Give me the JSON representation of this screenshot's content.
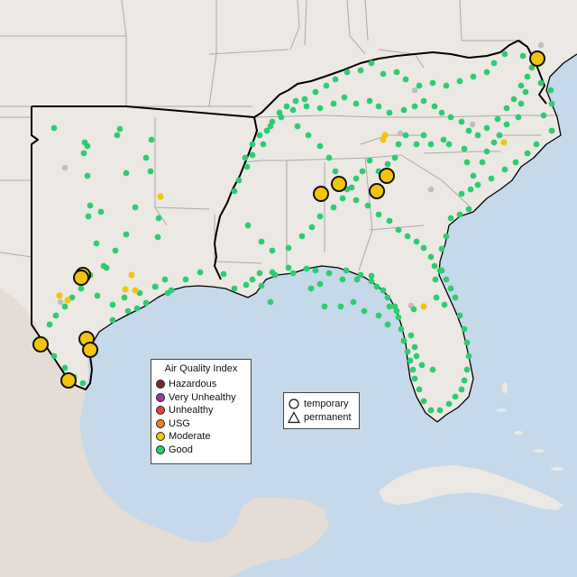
{
  "map": {
    "colors": {
      "water": "#c5d9ea",
      "land": "#ece9e4",
      "mexico": "#e4dcd5",
      "cuba": "#ece9e4",
      "region_border": "#000000",
      "state_line": "#a9a9a9"
    }
  },
  "aqi_legend": {
    "title": "Air Quality Index",
    "items": [
      {
        "label": "Hazardous",
        "color": "#7e2a2a"
      },
      {
        "label": "Very Unhealthy",
        "color": "#8f3f97"
      },
      {
        "label": "Unhealthy",
        "color": "#e8413a"
      },
      {
        "label": "USG",
        "color": "#f07d1f"
      },
      {
        "label": "Moderate",
        "color": "#f2c40f"
      },
      {
        "label": "Good",
        "color": "#2ecc71"
      }
    ]
  },
  "shape_legend": {
    "items": [
      {
        "label": "temporary",
        "shape": "circle-icon"
      },
      {
        "label": "permanent",
        "shape": "triangle-icon"
      }
    ]
  },
  "monitor_categories": {
    "good": "#2ecc71",
    "moderate": "#f2c40f",
    "no_data": "#bfbfbf"
  }
}
